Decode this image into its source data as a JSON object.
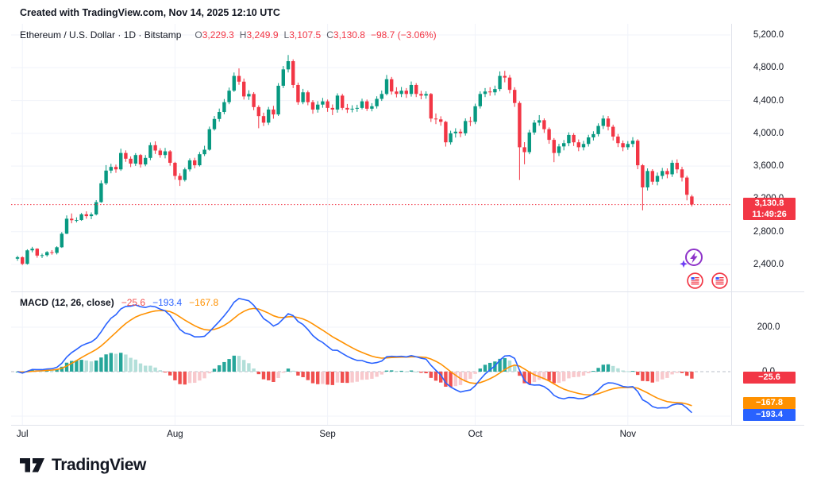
{
  "attribution": "Created with TradingView.com, Nov 14, 2025 12:10 UTC",
  "legend": {
    "title": "Ethereum / U.S. Dollar · 1D · Bitstamp",
    "ohlc": {
      "o_key": "O",
      "o": "3,229.3",
      "h_key": "H",
      "h": "3,249.9",
      "l_key": "L",
      "l": "3,107.5",
      "c_key": "C",
      "c": "3,130.8",
      "change": "−98.7 (−3.06%)"
    }
  },
  "macd_legend": {
    "title": "MACD",
    "params": "(12, 26, close)",
    "hist": "−25.6",
    "macd": "−193.4",
    "signal": "−167.8"
  },
  "price_axis": {
    "ticks": [
      {
        "label": "5,200.0",
        "value": 5200
      },
      {
        "label": "4,800.0",
        "value": 4800
      },
      {
        "label": "4,400.0",
        "value": 4400
      },
      {
        "label": "4,000.0",
        "value": 4000
      },
      {
        "label": "3,600.0",
        "value": 3600
      },
      {
        "label": "3,200.0",
        "value": 3200
      },
      {
        "label": "2,800.0",
        "value": 2800
      },
      {
        "label": "2,400.0",
        "value": 2400
      }
    ],
    "price_box": {
      "price": "3,130.8",
      "countdown": "11:49:26"
    }
  },
  "macd_axis": {
    "ticks": [
      {
        "label": "200.0",
        "value": 200
      },
      {
        "label": "0.0",
        "value": 0
      }
    ],
    "boxes": {
      "hist": {
        "label": "−25.6",
        "value": -25.6
      },
      "signal": {
        "label": "−167.8",
        "value": -167.8
      },
      "macd": {
        "label": "−193.4",
        "value": -193.4
      }
    }
  },
  "time_axis": {
    "labels": [
      {
        "label": "Jul",
        "index": 1
      },
      {
        "label": "Aug",
        "index": 32
      },
      {
        "label": "Sep",
        "index": 63
      },
      {
        "label": "Oct",
        "index": 93
      },
      {
        "label": "Nov",
        "index": 124
      }
    ]
  },
  "footer": {
    "brand": "TradingView"
  },
  "colors": {
    "up": "#089981",
    "down": "#f23645",
    "macd_line": "#2962ff",
    "signal_line": "#ff9100",
    "hist_pos": "#26a69a",
    "hist_pos_faded": "#b2dfd9",
    "hist_neg": "#f0504f",
    "hist_neg_faded": "#f8c9cd",
    "grid": "#f0f3fa",
    "zero_dash": "#b9bfc9",
    "axis_text": "#131722"
  },
  "chart_data": {
    "type": "candlestick",
    "title": "Ethereum / U.S. Dollar",
    "exchange": "Bitstamp",
    "interval": "1D",
    "start_date": "2025-06-30",
    "end_date": "2025-11-14",
    "price_axis_range": [
      2400,
      5200
    ],
    "price_tick_step": 400,
    "current": {
      "open": 3229.3,
      "high": 3249.9,
      "low": 3107.5,
      "close": 3130.8,
      "change": -98.7,
      "change_pct": -3.06,
      "countdown": "11:49:26"
    },
    "macd": {
      "fast": 12,
      "slow": 26,
      "signal_len": 9,
      "source": "close",
      "hist": -25.6,
      "macd": -193.4,
      "signal": -167.8,
      "axis_ticks": [
        200,
        0
      ]
    },
    "candles": [
      [
        2470,
        2505,
        2445,
        2488
      ],
      [
        2488,
        2499,
        2392,
        2407
      ],
      [
        2407,
        2585,
        2398,
        2572
      ],
      [
        2572,
        2615,
        2548,
        2592
      ],
      [
        2592,
        2598,
        2482,
        2508
      ],
      [
        2508,
        2532,
        2478,
        2513
      ],
      [
        2513,
        2562,
        2495,
        2550
      ],
      [
        2550,
        2575,
        2519,
        2541
      ],
      [
        2541,
        2622,
        2522,
        2610
      ],
      [
        2610,
        2795,
        2602,
        2775
      ],
      [
        2775,
        2998,
        2770,
        2958
      ],
      [
        2958,
        3022,
        2902,
        2940
      ],
      [
        2940,
        2975,
        2912,
        2942
      ],
      [
        2942,
        3028,
        2932,
        3012
      ],
      [
        3012,
        3048,
        2958,
        2990
      ],
      [
        2990,
        3035,
        2952,
        3010
      ],
      [
        3010,
        3185,
        2998,
        3160
      ],
      [
        3160,
        3425,
        3152,
        3390
      ],
      [
        3390,
        3612,
        3370,
        3545
      ],
      [
        3545,
        3628,
        3512,
        3590
      ],
      [
        3590,
        3618,
        3518,
        3560
      ],
      [
        3560,
        3812,
        3542,
        3760
      ],
      [
        3760,
        3792,
        3652,
        3690
      ],
      [
        3690,
        3718,
        3588,
        3630
      ],
      [
        3630,
        3758,
        3602,
        3735
      ],
      [
        3735,
        3748,
        3582,
        3620
      ],
      [
        3620,
        3735,
        3598,
        3700
      ],
      [
        3700,
        3888,
        3672,
        3855
      ],
      [
        3855,
        3902,
        3748,
        3790
      ],
      [
        3790,
        3818,
        3702,
        3735
      ],
      [
        3735,
        3822,
        3695,
        3780
      ],
      [
        3780,
        3795,
        3605,
        3640
      ],
      [
        3640,
        3652,
        3435,
        3480
      ],
      [
        3480,
        3512,
        3358,
        3430
      ],
      [
        3430,
        3582,
        3412,
        3560
      ],
      [
        3560,
        3695,
        3535,
        3670
      ],
      [
        3670,
        3702,
        3572,
        3610
      ],
      [
        3610,
        3772,
        3595,
        3745
      ],
      [
        3745,
        3848,
        3722,
        3800
      ],
      [
        3800,
        4082,
        3788,
        4050
      ],
      [
        4050,
        4212,
        4032,
        4175
      ],
      [
        4175,
        4302,
        4142,
        4260
      ],
      [
        4260,
        4418,
        4232,
        4380
      ],
      [
        4380,
        4558,
        4355,
        4520
      ],
      [
        4520,
        4742,
        4505,
        4700
      ],
      [
        4700,
        4792,
        4592,
        4630
      ],
      [
        4630,
        4668,
        4412,
        4450
      ],
      [
        4450,
        4525,
        4408,
        4480
      ],
      [
        4480,
        4502,
        4282,
        4320
      ],
      [
        4320,
        4342,
        4062,
        4210
      ],
      [
        4210,
        4252,
        4088,
        4130
      ],
      [
        4130,
        4322,
        4102,
        4290
      ],
      [
        4290,
        4335,
        4178,
        4230
      ],
      [
        4230,
        4612,
        4212,
        4580
      ],
      [
        4580,
        4822,
        4552,
        4780
      ],
      [
        4780,
        4955,
        4742,
        4880
      ],
      [
        4880,
        4902,
        4552,
        4590
      ],
      [
        4590,
        4618,
        4348,
        4380
      ],
      [
        4380,
        4542,
        4355,
        4500
      ],
      [
        4500,
        4522,
        4342,
        4380
      ],
      [
        4380,
        4405,
        4238,
        4290
      ],
      [
        4290,
        4392,
        4252,
        4350
      ],
      [
        4350,
        4432,
        4312,
        4390
      ],
      [
        4390,
        4412,
        4262,
        4310
      ],
      [
        4310,
        4352,
        4222,
        4290
      ],
      [
        4290,
        4488,
        4252,
        4460
      ],
      [
        4460,
        4482,
        4285,
        4310
      ],
      [
        4310,
        4358,
        4248,
        4290
      ],
      [
        4290,
        4342,
        4255,
        4300
      ],
      [
        4300,
        4348,
        4262,
        4310
      ],
      [
        4310,
        4422,
        4292,
        4390
      ],
      [
        4390,
        4412,
        4272,
        4300
      ],
      [
        4300,
        4368,
        4268,
        4330
      ],
      [
        4330,
        4452,
        4302,
        4420
      ],
      [
        4420,
        4522,
        4395,
        4480
      ],
      [
        4480,
        4712,
        4462,
        4660
      ],
      [
        4660,
        4688,
        4472,
        4510
      ],
      [
        4510,
        4562,
        4438,
        4480
      ],
      [
        4480,
        4565,
        4442,
        4520
      ],
      [
        4520,
        4552,
        4432,
        4480
      ],
      [
        4480,
        4632,
        4448,
        4590
      ],
      [
        4590,
        4612,
        4442,
        4480
      ],
      [
        4480,
        4518,
        4415,
        4460
      ],
      [
        4460,
        4512,
        4422,
        4480
      ],
      [
        4480,
        4492,
        4138,
        4180
      ],
      [
        4180,
        4242,
        4112,
        4170
      ],
      [
        4170,
        4208,
        4092,
        4140
      ],
      [
        4140,
        4152,
        3838,
        3890
      ],
      [
        3890,
        4032,
        3862,
        4000
      ],
      [
        4000,
        4062,
        3948,
        4020
      ],
      [
        4020,
        4052,
        3952,
        4000
      ],
      [
        4000,
        4182,
        3972,
        4150
      ],
      [
        4150,
        4202,
        4088,
        4140
      ],
      [
        4140,
        4362,
        4112,
        4330
      ],
      [
        4330,
        4512,
        4302,
        4480
      ],
      [
        4480,
        4552,
        4442,
        4510
      ],
      [
        4510,
        4562,
        4458,
        4500
      ],
      [
        4500,
        4582,
        4462,
        4540
      ],
      [
        4540,
        4755,
        4512,
        4700
      ],
      [
        4700,
        4762,
        4622,
        4680
      ],
      [
        4680,
        4712,
        4488,
        4530
      ],
      [
        4530,
        4562,
        4322,
        4370
      ],
      [
        4370,
        4392,
        3430,
        3830
      ],
      [
        3830,
        3892,
        3622,
        3770
      ],
      [
        3770,
        4042,
        3745,
        4010
      ],
      [
        4010,
        4162,
        3982,
        4130
      ],
      [
        4130,
        4222,
        4092,
        4160
      ],
      [
        4160,
        4182,
        4005,
        4050
      ],
      [
        4050,
        4072,
        3872,
        3920
      ],
      [
        3920,
        3942,
        3648,
        3760
      ],
      [
        3760,
        3872,
        3722,
        3840
      ],
      [
        3840,
        3918,
        3792,
        3880
      ],
      [
        3880,
        4012,
        3842,
        3980
      ],
      [
        3980,
        4002,
        3845,
        3890
      ],
      [
        3890,
        3925,
        3782,
        3830
      ],
      [
        3830,
        3908,
        3792,
        3870
      ],
      [
        3870,
        3982,
        3838,
        3950
      ],
      [
        3950,
        4025,
        3912,
        3990
      ],
      [
        3990,
        4122,
        3962,
        4090
      ],
      [
        4090,
        4218,
        4052,
        4180
      ],
      [
        4180,
        4212,
        4035,
        4080
      ],
      [
        4080,
        4105,
        3912,
        3960
      ],
      [
        3960,
        3992,
        3832,
        3880
      ],
      [
        3880,
        3912,
        3782,
        3830
      ],
      [
        3830,
        3905,
        3798,
        3870
      ],
      [
        3870,
        3952,
        3832,
        3910
      ],
      [
        3910,
        3928,
        3562,
        3610
      ],
      [
        3610,
        3625,
        3060,
        3340
      ],
      [
        3340,
        3572,
        3302,
        3540
      ],
      [
        3540,
        3562,
        3372,
        3410
      ],
      [
        3410,
        3522,
        3365,
        3480
      ],
      [
        3480,
        3578,
        3442,
        3540
      ],
      [
        3540,
        3572,
        3452,
        3500
      ],
      [
        3500,
        3672,
        3468,
        3640
      ],
      [
        3640,
        3682,
        3512,
        3560
      ],
      [
        3560,
        3592,
        3412,
        3460
      ],
      [
        3460,
        3482,
        3182,
        3250
      ],
      [
        3229.3,
        3249.9,
        3107.5,
        3130.8
      ]
    ]
  }
}
